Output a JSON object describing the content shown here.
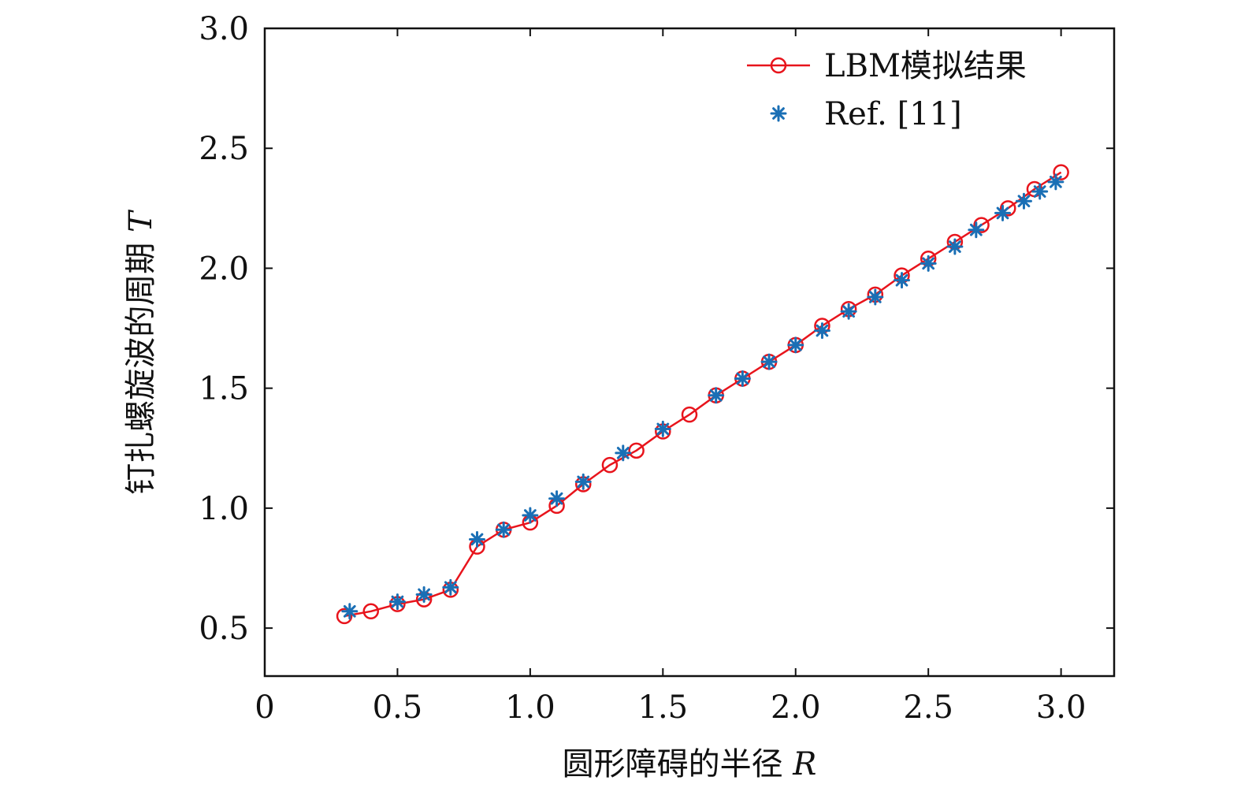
{
  "chart_data": {
    "type": "line",
    "title": "",
    "xlabel": "圆形障碍的半径",
    "xlabel_var": "R",
    "ylabel": "钉扎螺旋波的周期",
    "ylabel_var": "T",
    "xlim": [
      0,
      3.2
    ],
    "ylim": [
      0.3,
      3.0
    ],
    "x_ticks": [
      0,
      0.5,
      1.0,
      1.5,
      2.0,
      2.5,
      3.0
    ],
    "x_tick_labels": [
      "0",
      "0.5",
      "1.0",
      "1.5",
      "2.0",
      "2.5",
      "3.0"
    ],
    "y_ticks": [
      0.5,
      1.0,
      1.5,
      2.0,
      2.5,
      3.0
    ],
    "y_tick_labels": [
      "0.5",
      "1.0",
      "1.5",
      "2.0",
      "2.5",
      "3.0"
    ],
    "grid": false,
    "legend_position": "top-right",
    "series": [
      {
        "name": "LBM模拟结果",
        "style": "line-circle",
        "color": "#e8141c",
        "x": [
          0.3,
          0.4,
          0.5,
          0.6,
          0.7,
          0.8,
          0.9,
          1.0,
          1.1,
          1.2,
          1.3,
          1.4,
          1.5,
          1.6,
          1.7,
          1.8,
          1.9,
          2.0,
          2.1,
          2.2,
          2.3,
          2.4,
          2.5,
          2.6,
          2.7,
          2.8,
          2.9,
          3.0
        ],
        "values": [
          0.55,
          0.57,
          0.6,
          0.62,
          0.66,
          0.84,
          0.91,
          0.94,
          1.01,
          1.1,
          1.18,
          1.24,
          1.32,
          1.39,
          1.47,
          1.54,
          1.61,
          1.68,
          1.76,
          1.83,
          1.89,
          1.97,
          2.04,
          2.11,
          2.18,
          2.25,
          2.33,
          2.4
        ]
      },
      {
        "name": "Ref. [11]",
        "style": "asterisk",
        "color": "#1a6fb5",
        "x": [
          0.32,
          0.5,
          0.6,
          0.7,
          0.8,
          0.9,
          1.0,
          1.1,
          1.2,
          1.35,
          1.5,
          1.7,
          1.8,
          1.9,
          2.0,
          2.1,
          2.2,
          2.3,
          2.4,
          2.5,
          2.6,
          2.68,
          2.78,
          2.86,
          2.92,
          2.98
        ],
        "values": [
          0.57,
          0.61,
          0.64,
          0.67,
          0.87,
          0.91,
          0.97,
          1.04,
          1.11,
          1.23,
          1.33,
          1.47,
          1.54,
          1.61,
          1.68,
          1.74,
          1.82,
          1.88,
          1.95,
          2.02,
          2.09,
          2.16,
          2.23,
          2.28,
          2.32,
          2.36
        ]
      }
    ]
  }
}
